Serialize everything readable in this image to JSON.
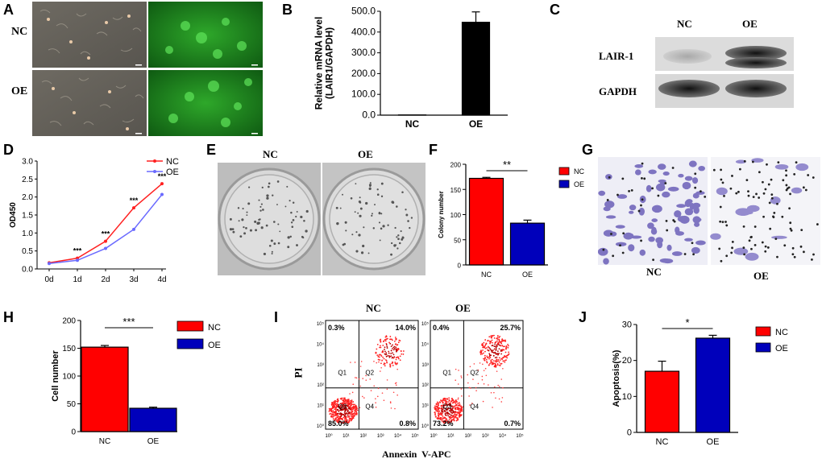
{
  "panels": {
    "A": {
      "label": "A",
      "rows": [
        "NC",
        "OE"
      ]
    },
    "B": {
      "label": "B"
    },
    "C": {
      "label": "C",
      "cols": [
        "NC",
        "OE"
      ],
      "rows": [
        "LAIR-1",
        "GAPDH"
      ]
    },
    "D": {
      "label": "D"
    },
    "E": {
      "label": "E",
      "cols": [
        "NC",
        "OE"
      ]
    },
    "F": {
      "label": "F"
    },
    "G": {
      "label": "G",
      "cols": [
        "NC",
        "OE"
      ]
    },
    "H": {
      "label": "H"
    },
    "I": {
      "label": "I",
      "cols": [
        "NC",
        "OE"
      ],
      "ylabel": "PI",
      "xlabel": "Annexin  V-APC",
      "plots": [
        {
          "q1": "0.3%",
          "q2": "14.0%",
          "q3": "85.0%",
          "q4": "0.8%"
        },
        {
          "q1": "0.4%",
          "q2": "25.7%",
          "q3": "73.2%",
          "q4": "0.7%"
        }
      ],
      "quadrant_names": [
        "Q1",
        "Q2",
        "Q3",
        "Q4"
      ]
    },
    "J": {
      "label": "J"
    }
  },
  "colors": {
    "nc": "#ff0000",
    "oe": "#0000bb",
    "blackbar": "#000000",
    "line_nc": "#ff2020",
    "line_oe": "#6a6aff"
  },
  "chart_data": [
    {
      "id": "B",
      "type": "bar",
      "categories": [
        "NC",
        "OE"
      ],
      "values": [
        1.0,
        447.0
      ],
      "errors": [
        0,
        50
      ],
      "ylabel": "Relative mRNA level\n(LAIR1/GAPDH)",
      "ylim": [
        0,
        500
      ],
      "yticks": [
        "0.0",
        "100.0",
        "200.0",
        "300.0",
        "400.0",
        "500.0"
      ]
    },
    {
      "id": "D",
      "type": "line",
      "x": [
        "0d",
        "1d",
        "2d",
        "3d",
        "4d"
      ],
      "ylabel": "OD450",
      "ylim": [
        0,
        3.0
      ],
      "yticks": [
        "0.0",
        "0.5",
        "1.0",
        "1.5",
        "2.0",
        "2.5",
        "3.0"
      ],
      "series": [
        {
          "name": "NC",
          "values": [
            0.17,
            0.3,
            0.77,
            1.7,
            2.37
          ]
        },
        {
          "name": "OE",
          "values": [
            0.15,
            0.24,
            0.57,
            1.1,
            2.07
          ]
        }
      ],
      "annotations": [
        "***",
        "***",
        "***",
        "***"
      ],
      "legend": "top-right"
    },
    {
      "id": "F",
      "type": "bar",
      "categories": [
        "NC",
        "OE"
      ],
      "values": [
        172,
        83
      ],
      "errors": [
        2,
        6
      ],
      "ylabel": "Colony number",
      "ylim": [
        0,
        200
      ],
      "yticks": [
        "0",
        "50",
        "100",
        "150",
        "200"
      ],
      "significance": "**",
      "legend": [
        "NC",
        "OE"
      ]
    },
    {
      "id": "H",
      "type": "bar",
      "categories": [
        "NC",
        "OE"
      ],
      "values": [
        152,
        42
      ],
      "errors": [
        3,
        2
      ],
      "ylabel": "Cell number",
      "ylim": [
        0,
        200
      ],
      "yticks": [
        "0",
        "50",
        "100",
        "150",
        "200"
      ],
      "significance": "***",
      "legend": [
        "NC",
        "OE"
      ]
    },
    {
      "id": "J",
      "type": "bar",
      "categories": [
        "NC",
        "OE"
      ],
      "values": [
        17,
        26.2
      ],
      "errors": [
        2.8,
        0.8
      ],
      "ylabel": "Apoptosis(%)",
      "ylim": [
        0,
        30
      ],
      "yticks": [
        "0",
        "10",
        "20",
        "30"
      ],
      "significance": "*",
      "legend": [
        "NC",
        "OE"
      ]
    }
  ]
}
